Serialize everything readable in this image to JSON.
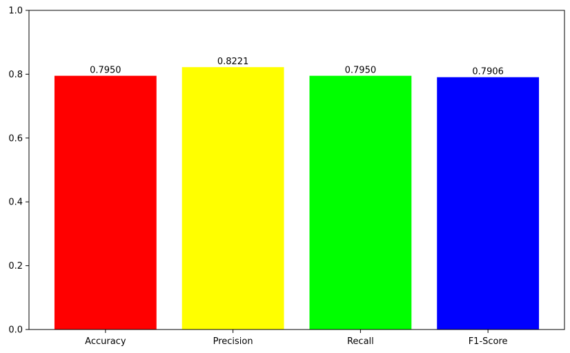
{
  "chart_data": {
    "type": "bar",
    "categories": [
      "Accuracy",
      "Precision",
      "Recall",
      "F1-Score"
    ],
    "values": [
      0.795,
      0.8221,
      0.795,
      0.7906
    ],
    "value_labels": [
      "0.7950",
      "0.8221",
      "0.7950",
      "0.7906"
    ],
    "colors": [
      "#ff0000",
      "#ffff00",
      "#00ff00",
      "#0000ff"
    ],
    "title": "",
    "xlabel": "",
    "ylabel": "",
    "ylim": [
      0,
      1
    ],
    "yticks": [
      0,
      0.2,
      0.4,
      0.6,
      0.8,
      1.0
    ],
    "ytick_labels": [
      "0.0",
      "0.2",
      "0.4",
      "0.6",
      "0.8",
      "1.0"
    ],
    "grid": false,
    "legend": false
  }
}
